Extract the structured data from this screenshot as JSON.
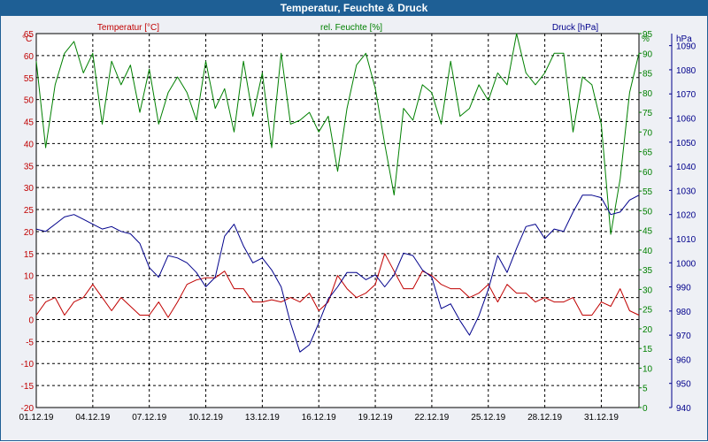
{
  "window": {
    "title": "Temperatur, Feuchte & Druck"
  },
  "colors": {
    "temperature": "#c00000",
    "humidity": "#008000",
    "pressure": "#00008b",
    "title_bar": "#1e5f95"
  },
  "chart_data": {
    "type": "line",
    "title": "Temperatur, Feuchte & Druck",
    "grid": true,
    "x_ticks": [
      "01.12.19",
      "04.12.19",
      "07.12.19",
      "10.12.19",
      "13.12.19",
      "16.12.19",
      "19.12.19",
      "22.12.19",
      "25.12.19",
      "28.12.19",
      "31.12.19"
    ],
    "x_range_days": [
      0,
      32
    ],
    "axes": {
      "temperature": {
        "unit": "°C",
        "label": "Temperatur [°C]",
        "ylim": [
          -20,
          65
        ],
        "ticks": [
          65,
          60,
          55,
          50,
          45,
          40,
          35,
          30,
          25,
          20,
          15,
          10,
          5,
          0,
          -5,
          -10,
          -15,
          -20
        ]
      },
      "humidity": {
        "unit": "%",
        "label": "rel. Feuchte [%]",
        "ylim": [
          0,
          95
        ],
        "ticks": [
          95,
          90,
          85,
          80,
          75,
          70,
          65,
          60,
          55,
          50,
          45,
          40,
          35,
          30,
          25,
          20,
          15,
          10,
          5,
          0
        ]
      },
      "pressure": {
        "unit": "hPa",
        "label": "Druck [hPa]",
        "ylim": [
          940,
          1095
        ],
        "ticks": [
          1090,
          1080,
          1070,
          1060,
          1050,
          1040,
          1030,
          1020,
          1010,
          1000,
          990,
          980,
          970,
          960,
          950,
          940
        ]
      }
    },
    "series": [
      {
        "name": "Temperatur [°C]",
        "axis": "temperature",
        "color": "#c00000",
        "x": [
          0,
          0.5,
          1,
          1.5,
          2,
          2.5,
          3,
          3.5,
          4,
          4.5,
          5,
          5.5,
          6,
          6.5,
          7,
          7.5,
          8,
          8.5,
          9,
          9.5,
          10,
          10.5,
          11,
          11.5,
          12,
          12.5,
          13,
          13.5,
          14,
          14.5,
          15,
          15.5,
          16,
          16.5,
          17,
          17.5,
          18,
          18.5,
          19,
          19.5,
          20,
          20.5,
          21,
          21.5,
          22,
          22.5,
          23,
          23.5,
          24,
          24.5,
          25,
          25.5,
          26,
          26.5,
          27,
          27.5,
          28,
          28.5,
          29,
          29.5,
          30,
          30.5,
          31,
          31.5,
          32
        ],
        "y": [
          1,
          4,
          5,
          1,
          4,
          5,
          8,
          5,
          2,
          5,
          3,
          1,
          1,
          4,
          0.5,
          4,
          8,
          9,
          9.5,
          9.5,
          11,
          7,
          7,
          4,
          4,
          4.5,
          4,
          5,
          4,
          6,
          2,
          4,
          10,
          7,
          5,
          6,
          8,
          15,
          11,
          7,
          7,
          11,
          10,
          8,
          7,
          7,
          5,
          6,
          8,
          4,
          8,
          6,
          6,
          4,
          5,
          4,
          4,
          5,
          1,
          1,
          4,
          3,
          7,
          2,
          1
        ]
      },
      {
        "name": "rel. Feuchte [%]",
        "axis": "humidity",
        "color": "#008000",
        "x": [
          0,
          0.5,
          1,
          1.5,
          2,
          2.5,
          3,
          3.5,
          4,
          4.5,
          5,
          5.5,
          6,
          6.5,
          7,
          7.5,
          8,
          8.5,
          9,
          9.5,
          10,
          10.5,
          11,
          11.5,
          12,
          12.5,
          13,
          13.5,
          14,
          14.5,
          15,
          15.5,
          16,
          16.5,
          17,
          17.5,
          18,
          18.5,
          19,
          19.5,
          20,
          20.5,
          21,
          21.5,
          22,
          22.5,
          23,
          23.5,
          24,
          24.5,
          25,
          25.5,
          26,
          26.5,
          27,
          27.5,
          28,
          28.5,
          29,
          29.5,
          30,
          30.5,
          31,
          31.5,
          32
        ],
        "y": [
          88,
          66,
          82,
          90,
          93,
          85,
          90,
          72,
          88,
          82,
          87,
          75,
          86,
          72,
          80,
          84,
          80,
          73,
          88,
          76,
          81,
          70,
          88,
          74,
          85,
          66,
          90,
          72,
          73,
          75,
          70,
          74,
          60,
          76,
          87,
          90,
          81,
          67,
          54,
          76,
          73,
          82,
          80,
          72,
          88,
          74,
          76,
          82,
          78,
          85,
          82,
          95,
          85,
          82,
          85,
          90,
          90,
          70,
          84,
          82,
          72,
          44,
          58,
          80,
          90
        ]
      },
      {
        "name": "Druck [hPa]",
        "axis": "pressure",
        "color": "#00008b",
        "x": [
          0,
          0.5,
          1,
          1.5,
          2,
          2.5,
          3,
          3.5,
          4,
          4.5,
          5,
          5.5,
          6,
          6.5,
          7,
          7.5,
          8,
          8.5,
          9,
          9.5,
          10,
          10.5,
          11,
          11.5,
          12,
          12.5,
          13,
          13.5,
          14,
          14.5,
          15,
          15.5,
          16,
          16.5,
          17,
          17.5,
          18,
          18.5,
          19,
          19.5,
          20,
          20.5,
          21,
          21.5,
          22,
          22.5,
          23,
          23.5,
          24,
          24.5,
          25,
          25.5,
          26,
          26.5,
          27,
          27.5,
          28,
          28.5,
          29,
          29.5,
          30,
          30.5,
          31,
          31.5,
          32
        ],
        "y": [
          1014,
          1013,
          1016,
          1019,
          1020,
          1018,
          1016,
          1014,
          1015,
          1013,
          1012,
          1008,
          998,
          994,
          1003,
          1002,
          1000,
          996,
          990,
          994,
          1011,
          1016,
          1007,
          1000,
          1002,
          997,
          990,
          975,
          963,
          966,
          975,
          985,
          990,
          996,
          996,
          993,
          995,
          990,
          995,
          1004,
          1003,
          997,
          994,
          981,
          983,
          976,
          970,
          978,
          989,
          1003,
          996,
          1006,
          1015,
          1016,
          1010,
          1014,
          1013,
          1021,
          1028,
          1028,
          1027,
          1020,
          1021,
          1026,
          1028
        ]
      }
    ]
  }
}
